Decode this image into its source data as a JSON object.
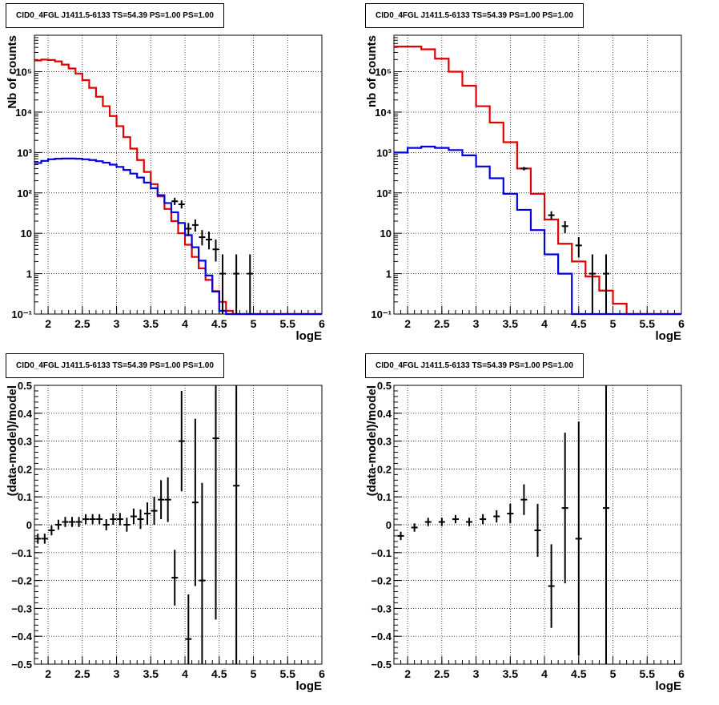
{
  "colors": {
    "model": "#e00000",
    "source": "#0000e0",
    "data": "#000000"
  },
  "chart_data": [
    {
      "type": "line",
      "panel": "top-left",
      "title": "CID0_4FGL J1411.5-6133 TS=54.39 PS=1.00 PS=1.00",
      "xlabel": "logE",
      "ylabel": "Nb of counts",
      "xlim": [
        1.8,
        6.0
      ],
      "ylim": [
        0.1,
        800000
      ],
      "yscale": "log",
      "grid": true,
      "x_ticks": [
        "2",
        "2.5",
        "3",
        "3.5",
        "4",
        "4.5",
        "5",
        "5.5",
        "6"
      ],
      "x_tick_values": [
        2,
        2.5,
        3,
        3.5,
        4,
        4.5,
        5,
        5.5,
        6
      ],
      "y_ticks": [
        "10⁻¹",
        "1",
        "10",
        "10²",
        "10³",
        "10⁴",
        "10⁵"
      ],
      "y_tick_values": [
        0.1,
        1,
        10,
        100,
        1000,
        10000,
        100000
      ],
      "series": [
        {
          "role": "model",
          "edges": [
            1.8,
            1.9,
            2.0,
            2.1,
            2.2,
            2.3,
            2.4,
            2.5,
            2.6,
            2.7,
            2.8,
            2.9,
            3.0,
            3.1,
            3.2,
            3.3,
            3.4,
            3.5,
            3.6,
            3.7,
            3.8,
            3.9,
            4.0,
            4.1,
            4.2,
            4.3,
            4.4,
            4.5,
            4.6,
            4.7,
            4.8,
            4.9,
            5.0,
            5.1,
            5.2,
            5.3,
            5.4,
            5.5,
            5.6,
            5.7,
            5.8,
            5.9,
            6.0
          ],
          "values": [
            190000,
            200000,
            195000,
            180000,
            150000,
            120000,
            90000,
            62000,
            40000,
            24000,
            14000,
            8000,
            4500,
            2400,
            1250,
            650,
            330,
            165,
            82,
            40,
            20,
            10,
            5.2,
            2.6,
            1.35,
            0.7,
            0.37,
            0.2,
            0.12,
            0.1,
            0.1,
            0.1,
            0.1,
            0.1,
            0.1,
            0.1,
            0.1,
            0.1,
            0.1,
            0.1,
            0.1,
            0.1
          ]
        },
        {
          "role": "source",
          "edges": [
            1.8,
            1.9,
            2.0,
            2.1,
            2.2,
            2.3,
            2.4,
            2.5,
            2.6,
            2.7,
            2.8,
            2.9,
            3.0,
            3.1,
            3.2,
            3.3,
            3.4,
            3.5,
            3.6,
            3.7,
            3.8,
            3.9,
            4.0,
            4.1,
            4.2,
            4.3,
            4.4,
            4.5,
            4.6,
            4.7,
            4.8,
            4.9,
            5.0,
            5.1,
            5.2,
            5.3,
            5.4,
            5.5,
            5.6,
            5.7,
            5.8,
            5.9,
            6.0
          ],
          "values": [
            550,
            620,
            680,
            700,
            710,
            710,
            700,
            680,
            650,
            610,
            560,
            500,
            440,
            370,
            300,
            240,
            180,
            130,
            88,
            56,
            33,
            18,
            9,
            4.5,
            2.1,
            0.9,
            0.36,
            0.12,
            0.1,
            0.1,
            0.1,
            0.1,
            0.1,
            0.1,
            0.1,
            0.1,
            0.1,
            0.1,
            0.1,
            0.1,
            0.1,
            0.1
          ]
        }
      ],
      "points": [
        {
          "x": 3.85,
          "y": 62,
          "lo": 50,
          "hi": 76
        },
        {
          "x": 3.95,
          "y": 52,
          "lo": 41,
          "hi": 65
        },
        {
          "x": 4.05,
          "y": 13,
          "lo": 8.5,
          "hi": 18
        },
        {
          "x": 4.15,
          "y": 16,
          "lo": 11,
          "hi": 22
        },
        {
          "x": 4.25,
          "y": 8,
          "lo": 5,
          "hi": 12
        },
        {
          "x": 4.35,
          "y": 7,
          "lo": 4,
          "hi": 11
        },
        {
          "x": 4.45,
          "y": 4,
          "lo": 2,
          "hi": 7
        },
        {
          "x": 4.55,
          "y": 1,
          "lo": 0.1,
          "hi": 3
        },
        {
          "x": 4.75,
          "y": 1,
          "lo": 0.1,
          "hi": 3
        },
        {
          "x": 4.95,
          "y": 1,
          "lo": 0.1,
          "hi": 3
        }
      ]
    },
    {
      "type": "line",
      "panel": "top-right",
      "title": "CID0_4FGL J1411.5-6133 TS=54.39 PS=1.00 PS=1.00",
      "xlabel": "logE",
      "ylabel": "nb of counts",
      "xlim": [
        1.8,
        6.0
      ],
      "ylim": [
        0.1,
        800000
      ],
      "yscale": "log",
      "grid": true,
      "x_ticks": [
        "2",
        "2.5",
        "3",
        "3.5",
        "4",
        "4.5",
        "5",
        "5.5",
        "6"
      ],
      "x_tick_values": [
        2,
        2.5,
        3,
        3.5,
        4,
        4.5,
        5,
        5.5,
        6
      ],
      "y_ticks": [
        "10⁻¹",
        "1",
        "10",
        "10²",
        "10³",
        "10⁴",
        "10⁵"
      ],
      "y_tick_values": [
        0.1,
        1,
        10,
        100,
        1000,
        10000,
        100000
      ],
      "series": [
        {
          "role": "model",
          "edges": [
            1.8,
            2.0,
            2.2,
            2.4,
            2.6,
            2.8,
            3.0,
            3.2,
            3.4,
            3.6,
            3.8,
            4.0,
            4.2,
            4.4,
            4.6,
            4.8,
            5.0,
            5.2,
            5.4,
            5.6,
            5.8,
            6.0
          ],
          "values": [
            420000,
            420000,
            360000,
            210000,
            100000,
            45000,
            14000,
            5500,
            1800,
            400,
            95,
            22,
            5.5,
            2.0,
            0.85,
            0.38,
            0.18,
            0.1,
            0.1,
            0.1,
            0.1
          ]
        },
        {
          "role": "source",
          "edges": [
            1.8,
            2.0,
            2.2,
            2.4,
            2.6,
            2.8,
            3.0,
            3.2,
            3.4,
            3.6,
            3.8,
            4.0,
            4.2,
            4.4,
            4.6,
            4.8,
            5.0,
            5.2,
            5.4,
            5.6,
            5.8,
            6.0
          ],
          "values": [
            1000,
            1300,
            1400,
            1300,
            1150,
            850,
            450,
            230,
            95,
            38,
            12,
            3.0,
            1.0,
            0.1,
            0.1,
            0.1,
            0.1,
            0.1,
            0.1,
            0.1,
            0.1
          ]
        }
      ],
      "points": [
        {
          "x": 3.7,
          "y": 400,
          "lo": 360,
          "hi": 440
        },
        {
          "x": 4.1,
          "y": 28,
          "lo": 22,
          "hi": 35
        },
        {
          "x": 4.3,
          "y": 15,
          "lo": 10,
          "hi": 20
        },
        {
          "x": 4.5,
          "y": 5,
          "lo": 2.5,
          "hi": 8
        },
        {
          "x": 4.7,
          "y": 1,
          "lo": 0.1,
          "hi": 3
        },
        {
          "x": 4.9,
          "y": 1,
          "lo": 0.1,
          "hi": 3
        }
      ]
    },
    {
      "type": "scatter",
      "panel": "bottom-left",
      "title": "CID0_4FGL J1411.5-6133 TS=54.39 PS=1.00 PS=1.00",
      "xlabel": "logE",
      "ylabel": "(data-model)/model",
      "xlim": [
        1.8,
        6.0
      ],
      "ylim": [
        -0.5,
        0.5
      ],
      "grid": true,
      "x_ticks": [
        "2",
        "2.5",
        "3",
        "3.5",
        "4",
        "4.5",
        "5",
        "5.5",
        "6"
      ],
      "x_tick_values": [
        2,
        2.5,
        3,
        3.5,
        4,
        4.5,
        5,
        5.5,
        6
      ],
      "y_ticks": [
        "−0.5",
        "−0.4",
        "−0.3",
        "−0.2",
        "−0.1",
        "0",
        "0.1",
        "0.2",
        "0.3",
        "0.4",
        "0.5"
      ],
      "y_tick_values": [
        -0.5,
        -0.4,
        -0.3,
        -0.2,
        -0.1,
        0,
        0.1,
        0.2,
        0.3,
        0.4,
        0.5
      ],
      "points": [
        {
          "x": 1.85,
          "y": -0.05,
          "e": 0.018
        },
        {
          "x": 1.95,
          "y": -0.05,
          "e": 0.018
        },
        {
          "x": 2.05,
          "y": -0.02,
          "e": 0.018
        },
        {
          "x": 2.15,
          "y": 0.0,
          "e": 0.018
        },
        {
          "x": 2.25,
          "y": 0.01,
          "e": 0.018
        },
        {
          "x": 2.35,
          "y": 0.01,
          "e": 0.018
        },
        {
          "x": 2.45,
          "y": 0.01,
          "e": 0.018
        },
        {
          "x": 2.55,
          "y": 0.02,
          "e": 0.018
        },
        {
          "x": 2.65,
          "y": 0.02,
          "e": 0.018
        },
        {
          "x": 2.75,
          "y": 0.02,
          "e": 0.018
        },
        {
          "x": 2.85,
          "y": 0.0,
          "e": 0.02
        },
        {
          "x": 2.95,
          "y": 0.02,
          "e": 0.02
        },
        {
          "x": 3.05,
          "y": 0.02,
          "e": 0.022
        },
        {
          "x": 3.15,
          "y": 0.0,
          "e": 0.025
        },
        {
          "x": 3.25,
          "y": 0.03,
          "e": 0.028
        },
        {
          "x": 3.35,
          "y": 0.02,
          "e": 0.035
        },
        {
          "x": 3.45,
          "y": 0.04,
          "e": 0.04
        },
        {
          "x": 3.55,
          "y": 0.05,
          "e": 0.05
        },
        {
          "x": 3.65,
          "y": 0.09,
          "e": 0.07
        },
        {
          "x": 3.75,
          "y": 0.09,
          "e": 0.08
        },
        {
          "x": 3.85,
          "y": -0.19,
          "e": 0.1
        },
        {
          "x": 3.95,
          "y": 0.3,
          "e": 0.18
        },
        {
          "x": 4.05,
          "y": -0.41,
          "e": 0.16
        },
        {
          "x": 4.15,
          "y": 0.08,
          "e": 0.3
        },
        {
          "x": 4.25,
          "y": -0.2,
          "e": 0.35
        },
        {
          "x": 4.45,
          "y": 0.31,
          "e": 0.65
        },
        {
          "x": 4.75,
          "y": 0.14,
          "e": 0.9
        }
      ]
    },
    {
      "type": "scatter",
      "panel": "bottom-right",
      "title": "CID0_4FGL J1411.5-6133 TS=54.39 PS=1.00 PS=1.00",
      "xlabel": "logE",
      "ylabel": "(data-model)/model",
      "xlim": [
        1.8,
        6.0
      ],
      "ylim": [
        -0.5,
        0.5
      ],
      "grid": true,
      "x_ticks": [
        "2",
        "2.5",
        "3",
        "3.5",
        "4",
        "4.5",
        "5",
        "5.5",
        "6"
      ],
      "x_tick_values": [
        2,
        2.5,
        3,
        3.5,
        4,
        4.5,
        5,
        5.5,
        6
      ],
      "y_ticks": [
        "−0.5",
        "−0.4",
        "−0.3",
        "−0.2",
        "−0.1",
        "0",
        "0.1",
        "0.2",
        "0.3",
        "0.4",
        "0.5"
      ],
      "y_tick_values": [
        -0.5,
        -0.4,
        -0.3,
        -0.2,
        -0.1,
        0,
        0.1,
        0.2,
        0.3,
        0.4,
        0.5
      ],
      "points": [
        {
          "x": 1.9,
          "y": -0.04,
          "e": 0.015
        },
        {
          "x": 2.1,
          "y": -0.01,
          "e": 0.015
        },
        {
          "x": 2.3,
          "y": 0.01,
          "e": 0.015
        },
        {
          "x": 2.5,
          "y": 0.01,
          "e": 0.015
        },
        {
          "x": 2.7,
          "y": 0.02,
          "e": 0.015
        },
        {
          "x": 2.9,
          "y": 0.01,
          "e": 0.015
        },
        {
          "x": 3.1,
          "y": 0.02,
          "e": 0.018
        },
        {
          "x": 3.3,
          "y": 0.03,
          "e": 0.022
        },
        {
          "x": 3.5,
          "y": 0.04,
          "e": 0.035
        },
        {
          "x": 3.7,
          "y": 0.09,
          "e": 0.055
        },
        {
          "x": 3.9,
          "y": -0.02,
          "e": 0.095
        },
        {
          "x": 4.1,
          "y": -0.22,
          "e": 0.15
        },
        {
          "x": 4.3,
          "y": 0.06,
          "e": 0.27
        },
        {
          "x": 4.5,
          "y": -0.05,
          "e": 0.42
        },
        {
          "x": 4.9,
          "y": 0.06,
          "e": 0.6
        }
      ]
    }
  ]
}
